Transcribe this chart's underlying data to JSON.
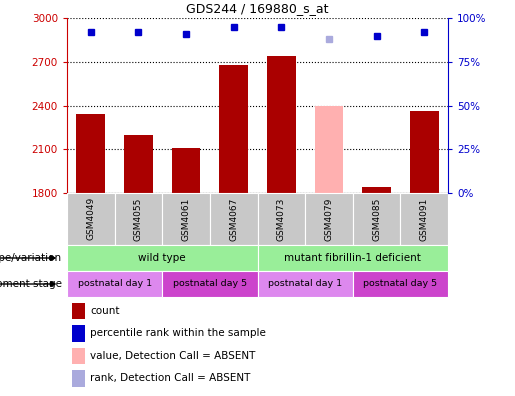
{
  "title": "GDS244 / 169880_s_at",
  "samples": [
    "GSM4049",
    "GSM4055",
    "GSM4061",
    "GSM4067",
    "GSM4073",
    "GSM4079",
    "GSM4085",
    "GSM4091"
  ],
  "bar_values": [
    2340,
    2200,
    2110,
    2680,
    2740,
    2400,
    1840,
    2360
  ],
  "bar_colors": [
    "#aa0000",
    "#aa0000",
    "#aa0000",
    "#aa0000",
    "#aa0000",
    "#ffb0b0",
    "#aa0000",
    "#aa0000"
  ],
  "dot_values": [
    92,
    92,
    91,
    95,
    95,
    88,
    90,
    92
  ],
  "dot_colors": [
    "#0000cc",
    "#0000cc",
    "#0000cc",
    "#0000cc",
    "#0000cc",
    "#aaaadd",
    "#0000cc",
    "#0000cc"
  ],
  "ymin": 1800,
  "ymax": 3000,
  "yticks": [
    1800,
    2100,
    2400,
    2700,
    3000
  ],
  "y2min": 0,
  "y2max": 100,
  "y2ticks": [
    0,
    25,
    50,
    75,
    100
  ],
  "y2ticklabels": [
    "0%",
    "25%",
    "50%",
    "75%",
    "100%"
  ],
  "geno_groups": [
    {
      "label": "wild type",
      "start": 0,
      "end": 4
    },
    {
      "label": "mutant fibrillin-1 deficient",
      "start": 4,
      "end": 8
    }
  ],
  "geno_color": "#99ee99",
  "dev_groups": [
    {
      "label": "postnatal day 1",
      "start": 0,
      "end": 2,
      "color": "#dd88ee"
    },
    {
      "label": "postnatal day 5",
      "start": 2,
      "end": 4,
      "color": "#cc44cc"
    },
    {
      "label": "postnatal day 1",
      "start": 4,
      "end": 6,
      "color": "#dd88ee"
    },
    {
      "label": "postnatal day 5",
      "start": 6,
      "end": 8,
      "color": "#cc44cc"
    }
  ],
  "legend_items": [
    {
      "label": "count",
      "color": "#aa0000"
    },
    {
      "label": "percentile rank within the sample",
      "color": "#0000cc"
    },
    {
      "label": "value, Detection Call = ABSENT",
      "color": "#ffb0b0"
    },
    {
      "label": "rank, Detection Call = ABSENT",
      "color": "#aaaadd"
    }
  ],
  "left_label_genotype": "genotype/variation",
  "left_label_development": "development stage",
  "bar_width": 0.6,
  "left_y_color": "#cc0000",
  "right_y_color": "#0000cc",
  "sample_box_color": "#c8c8c8"
}
